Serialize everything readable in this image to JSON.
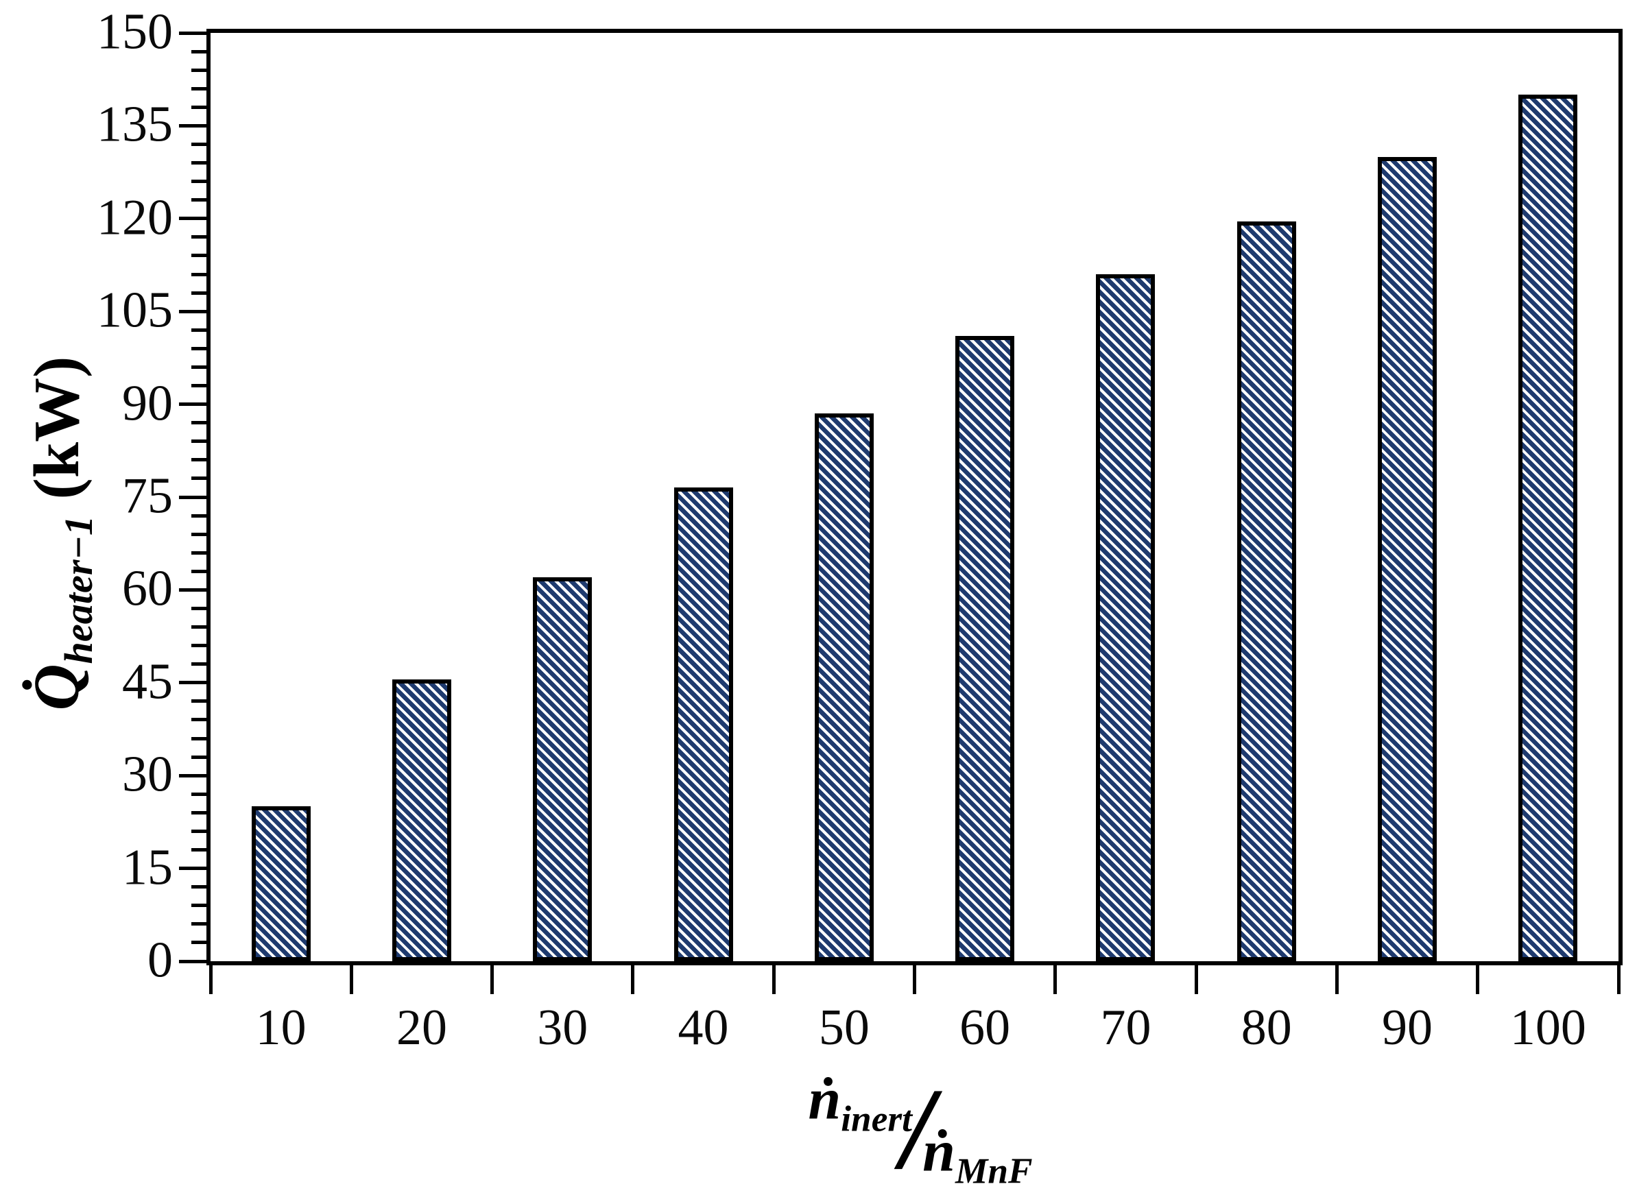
{
  "figure": {
    "background": "#ffffff",
    "axis_color": "#000000",
    "bar_dark_color": "#1e3a6e",
    "bar_light_color": "#fbfdff",
    "bar_border_color": "#000000"
  },
  "y_axis": {
    "symbol": "Q̇",
    "subscript": "heater−1",
    "unit": "(kW)",
    "tick_labels": [
      "150",
      "135",
      "120",
      "105",
      "90",
      "75",
      "60",
      "45",
      "30",
      "15",
      "0"
    ]
  },
  "x_axis": {
    "num_symbol": "ṅ",
    "num_sub": "inert",
    "slash": "/",
    "den_symbol": "ṅ",
    "den_sub": "MnF",
    "tick_labels": [
      "10",
      "20",
      "30",
      "40",
      "50",
      "60",
      "70",
      "80",
      "90",
      "100"
    ]
  },
  "chart_data": {
    "type": "bar",
    "title": "",
    "categories": [
      10,
      20,
      30,
      40,
      50,
      60,
      70,
      80,
      90,
      100
    ],
    "values": [
      25,
      45.5,
      62,
      76.5,
      88.5,
      101,
      111,
      119.5,
      130,
      140
    ],
    "xlabel": "ṅinert/ṅMnF",
    "ylabel": "Q̇heater−1 (kW)",
    "ylim": [
      0,
      150
    ],
    "y_major_step": 15,
    "y_minor_step": 3,
    "grid": false,
    "legend": false,
    "bar_pattern": "diagonal-hatch",
    "bar_color": "#1e3a6e"
  }
}
